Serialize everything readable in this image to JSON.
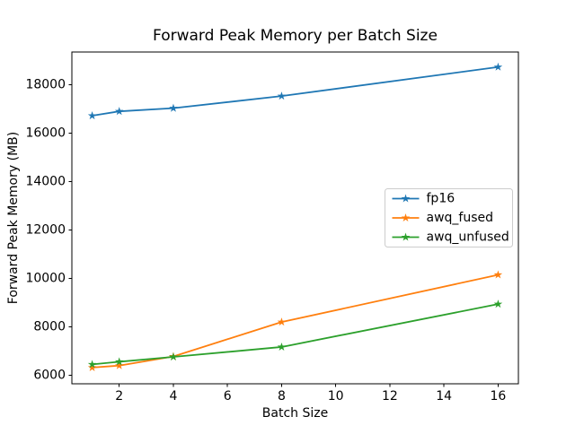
{
  "figure": {
    "background": "#ffffff",
    "title": "Forward Peak Memory per Batch Size",
    "xlabel": "Batch Size",
    "ylabel": "Forward Peak Memory (MB)"
  },
  "chart_data": {
    "type": "line",
    "title": "Forward Peak Memory per Batch Size",
    "xlabel": "Batch Size",
    "ylabel": "Forward Peak Memory (MB)",
    "x": [
      1,
      2,
      4,
      8,
      16
    ],
    "series": [
      {
        "name": "fp16",
        "color": "#1f77b4",
        "values": [
          16720,
          16900,
          17030,
          17530,
          18730
        ]
      },
      {
        "name": "awq_fused",
        "color": "#ff7f0e",
        "values": [
          6320,
          6400,
          6780,
          8200,
          10150
        ]
      },
      {
        "name": "awq_unfused",
        "color": "#2ca02c",
        "values": [
          6450,
          6560,
          6760,
          7170,
          8940
        ]
      }
    ],
    "marker": "star",
    "line_width": 1.8,
    "xlim": [
      0.25,
      16.75
    ],
    "ylim": [
      5650,
      19350
    ],
    "xticks": [
      2,
      4,
      6,
      8,
      10,
      12,
      14,
      16
    ],
    "yticks": [
      6000,
      8000,
      10000,
      12000,
      14000,
      16000,
      18000
    ],
    "grid": false,
    "legend_position": "center-right",
    "legend_border_color": "#cccccc",
    "text_color": "#000000",
    "spine_color": "#000000"
  }
}
